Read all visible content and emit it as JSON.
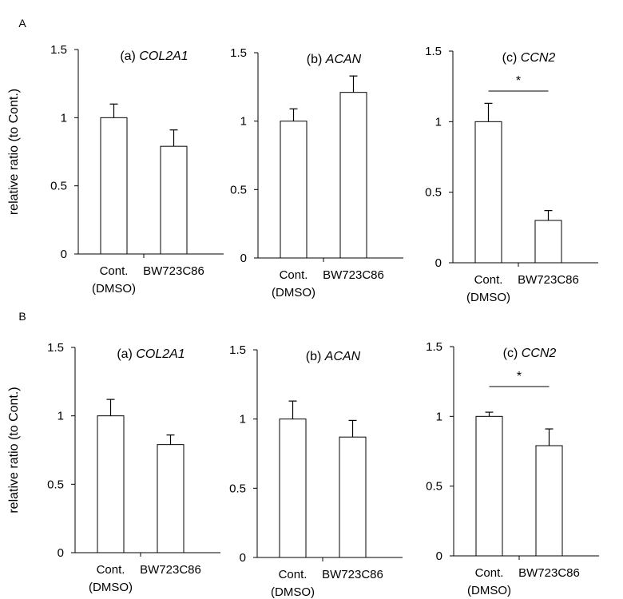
{
  "chart_data": {
    "type": "bar",
    "ylabel": "relative ratio (to Cont.)",
    "categories": [
      [
        "Cont.",
        "(DMSO)"
      ],
      [
        "BW723C86"
      ]
    ],
    "yticks": [
      0,
      0.5,
      1,
      1.5
    ],
    "ylim": [
      0,
      1.5
    ],
    "rows": [
      {
        "label": "A",
        "panels": [
          {
            "title_prefix": "(a) ",
            "gene": "COL2A1",
            "values": [
              1.0,
              0.79
            ],
            "errors": [
              0.1,
              0.12
            ],
            "significance": null
          },
          {
            "title_prefix": "(b) ",
            "gene": "ACAN",
            "values": [
              1.0,
              1.21
            ],
            "errors": [
              0.09,
              0.12
            ],
            "significance": null
          },
          {
            "title_prefix": "(c) ",
            "gene": "CCN2",
            "values": [
              1.0,
              0.3
            ],
            "errors": [
              0.13,
              0.07
            ],
            "significance": "*"
          }
        ]
      },
      {
        "label": "B",
        "panels": [
          {
            "title_prefix": "(a) ",
            "gene": "COL2A1",
            "values": [
              1.0,
              0.79
            ],
            "errors": [
              0.12,
              0.07
            ],
            "significance": null
          },
          {
            "title_prefix": "(b) ",
            "gene": "ACAN",
            "values": [
              1.0,
              0.87
            ],
            "errors": [
              0.13,
              0.12
            ],
            "significance": null
          },
          {
            "title_prefix": "(c) ",
            "gene": "CCN2",
            "values": [
              1.0,
              0.79
            ],
            "errors": [
              0.03,
              0.12
            ],
            "significance": "*"
          }
        ]
      }
    ]
  }
}
